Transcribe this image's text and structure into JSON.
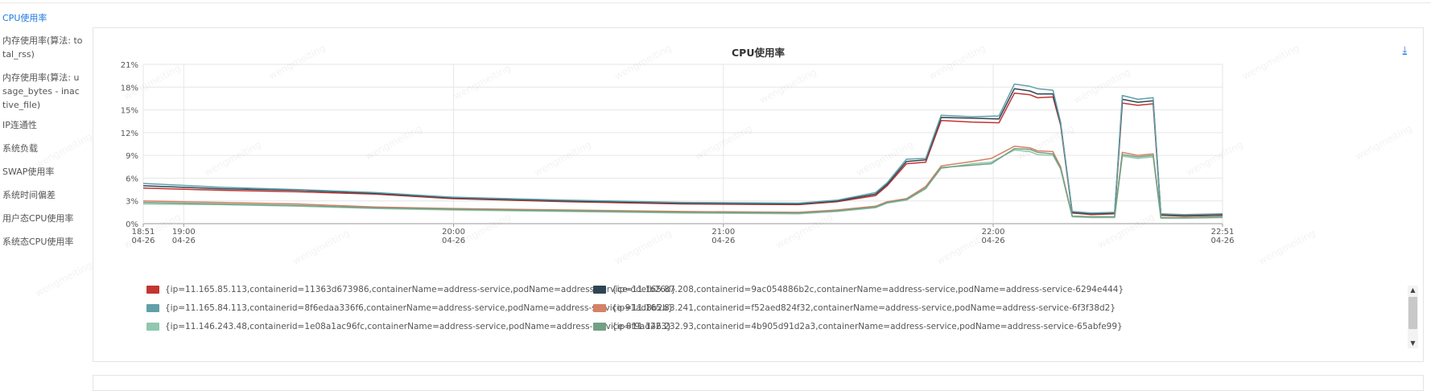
{
  "sidebar": {
    "items": [
      {
        "label": "CPU使用率",
        "active": true
      },
      {
        "label": "内存使用率(算法: total_rss)",
        "active": false
      },
      {
        "label": "内存使用率(算法: usage_bytes - inactive_file)",
        "active": false
      },
      {
        "label": "IP连通性",
        "active": false
      },
      {
        "label": "系统负载",
        "active": false
      },
      {
        "label": "SWAP使用率",
        "active": false
      },
      {
        "label": "系统时间偏差",
        "active": false
      },
      {
        "label": "用户态CPU使用率",
        "active": false
      },
      {
        "label": "系统态CPU使用率",
        "active": false
      }
    ]
  },
  "panel": {
    "download_icon": "download-icon",
    "download_glyph": "⤓"
  },
  "watermark_text": "wengmeiting",
  "chart_data": {
    "type": "line",
    "title": "CPU使用率",
    "xlabel": "",
    "ylabel": "",
    "ylim": [
      0,
      21
    ],
    "y_ticks": [
      "0%",
      "3%",
      "6%",
      "9%",
      "12%",
      "15%",
      "18%",
      "21%"
    ],
    "y_tick_values": [
      0,
      3,
      6,
      9,
      12,
      15,
      18,
      21
    ],
    "xlim": [
      "18:51 04-26",
      "22:51 04-26"
    ],
    "x_ticks": [
      {
        "time": "18:51",
        "date": "04-26",
        "minute": 0
      },
      {
        "time": "19:00",
        "date": "04-26",
        "minute": 9
      },
      {
        "time": "20:00",
        "date": "04-26",
        "minute": 69
      },
      {
        "time": "21:00",
        "date": "04-26",
        "minute": 129
      },
      {
        "time": "22:00",
        "date": "04-26",
        "minute": 189
      },
      {
        "time": "22:51",
        "date": "04-26",
        "minute": 240
      }
    ],
    "grid": true,
    "legend_position": "bottom",
    "series": [
      {
        "name": "{ip=11.165.85.113,containerid=11363d673986,containerName=address-service,podName=address-service-ddefb26d}",
        "color": "#c23531",
        "points": [
          [
            0,
            4.7
          ],
          [
            20,
            4.4
          ],
          [
            40,
            4.2
          ],
          [
            60,
            3.9
          ],
          [
            80,
            3.3
          ],
          [
            110,
            2.9
          ],
          [
            140,
            2.6
          ],
          [
            170,
            2.5
          ],
          [
            180,
            2.9
          ],
          [
            190,
            3.7
          ],
          [
            193,
            5.0
          ],
          [
            198,
            7.9
          ],
          [
            203,
            8.1
          ],
          [
            207,
            13.6
          ],
          [
            215,
            13.4
          ],
          [
            222,
            13.3
          ],
          [
            226,
            17.2
          ],
          [
            230,
            17.0
          ],
          [
            232,
            16.6
          ],
          [
            236,
            16.7
          ],
          [
            238,
            13.0
          ],
          [
            241,
            1.4
          ],
          [
            246,
            1.2
          ],
          [
            252,
            1.3
          ],
          [
            254,
            15.9
          ],
          [
            258,
            15.6
          ],
          [
            262,
            15.8
          ],
          [
            264,
            1.1
          ],
          [
            270,
            1.0
          ],
          [
            280,
            1.1
          ]
        ]
      },
      {
        "name": "{ip=11.165.87.208,containerid=9ac054886b2c,containerName=address-service,podName=address-service-6294e444}",
        "color": "#2f4554",
        "points": [
          [
            0,
            5.0
          ],
          [
            20,
            4.6
          ],
          [
            40,
            4.4
          ],
          [
            60,
            4.0
          ],
          [
            80,
            3.4
          ],
          [
            110,
            3.0
          ],
          [
            140,
            2.7
          ],
          [
            170,
            2.6
          ],
          [
            180,
            3.0
          ],
          [
            190,
            3.9
          ],
          [
            193,
            5.2
          ],
          [
            198,
            8.2
          ],
          [
            203,
            8.4
          ],
          [
            207,
            14.0
          ],
          [
            215,
            13.9
          ],
          [
            222,
            13.8
          ],
          [
            226,
            17.8
          ],
          [
            230,
            17.5
          ],
          [
            232,
            17.1
          ],
          [
            236,
            17.1
          ],
          [
            238,
            13.2
          ],
          [
            241,
            1.5
          ],
          [
            246,
            1.3
          ],
          [
            252,
            1.4
          ],
          [
            254,
            16.4
          ],
          [
            258,
            16.0
          ],
          [
            262,
            16.2
          ],
          [
            264,
            1.2
          ],
          [
            270,
            1.1
          ],
          [
            280,
            1.2
          ]
        ]
      },
      {
        "name": "{ip=11.165.84.113,containerid=8f6edaa336f6,containerName=address-service,podName=address-service-91ad8b2b}",
        "color": "#61a0a8",
        "points": [
          [
            0,
            5.3
          ],
          [
            20,
            4.8
          ],
          [
            40,
            4.5
          ],
          [
            60,
            4.1
          ],
          [
            80,
            3.5
          ],
          [
            110,
            3.1
          ],
          [
            140,
            2.8
          ],
          [
            170,
            2.7
          ],
          [
            180,
            3.1
          ],
          [
            190,
            4.1
          ],
          [
            193,
            5.4
          ],
          [
            198,
            8.5
          ],
          [
            203,
            8.6
          ],
          [
            207,
            14.3
          ],
          [
            215,
            14.1
          ],
          [
            222,
            14.2
          ],
          [
            226,
            18.4
          ],
          [
            230,
            18.1
          ],
          [
            232,
            17.8
          ],
          [
            236,
            17.6
          ],
          [
            238,
            13.4
          ],
          [
            241,
            1.6
          ],
          [
            246,
            1.4
          ],
          [
            252,
            1.5
          ],
          [
            254,
            16.9
          ],
          [
            258,
            16.4
          ],
          [
            262,
            16.6
          ],
          [
            264,
            1.3
          ],
          [
            270,
            1.2
          ],
          [
            280,
            1.3
          ]
        ]
      },
      {
        "name": "{ip=11.165.83.241,containerid=f52aed824f32,containerName=address-service,podName=address-service-6f3f38d2}",
        "color": "#d48265",
        "points": [
          [
            0,
            3.0
          ],
          [
            20,
            2.8
          ],
          [
            40,
            2.6
          ],
          [
            60,
            2.2
          ],
          [
            80,
            2.0
          ],
          [
            110,
            1.8
          ],
          [
            140,
            1.6
          ],
          [
            170,
            1.5
          ],
          [
            180,
            1.8
          ],
          [
            190,
            2.3
          ],
          [
            193,
            2.9
          ],
          [
            198,
            3.3
          ],
          [
            203,
            4.9
          ],
          [
            207,
            7.6
          ],
          [
            215,
            8.2
          ],
          [
            220,
            8.6
          ],
          [
            226,
            10.2
          ],
          [
            230,
            10.0
          ],
          [
            232,
            9.6
          ],
          [
            236,
            9.5
          ],
          [
            238,
            7.5
          ],
          [
            241,
            1.0
          ],
          [
            246,
            0.9
          ],
          [
            252,
            0.9
          ],
          [
            254,
            9.4
          ],
          [
            258,
            9.0
          ],
          [
            262,
            9.2
          ],
          [
            264,
            0.8
          ],
          [
            270,
            0.8
          ],
          [
            280,
            0.9
          ]
        ]
      },
      {
        "name": "{ip=11.146.243.48,containerid=1e08a1ac96fc,containerName=address-service,podName=address-service-8f9ad223}",
        "color": "#91c7ae",
        "points": [
          [
            0,
            2.6
          ],
          [
            20,
            2.5
          ],
          [
            40,
            2.3
          ],
          [
            60,
            2.0
          ],
          [
            80,
            1.8
          ],
          [
            110,
            1.6
          ],
          [
            140,
            1.4
          ],
          [
            170,
            1.3
          ],
          [
            180,
            1.6
          ],
          [
            190,
            2.1
          ],
          [
            193,
            2.7
          ],
          [
            198,
            3.1
          ],
          [
            203,
            4.6
          ],
          [
            207,
            7.3
          ],
          [
            215,
            7.9
          ],
          [
            220,
            8.1
          ],
          [
            226,
            9.7
          ],
          [
            230,
            9.5
          ],
          [
            232,
            9.1
          ],
          [
            236,
            9.0
          ],
          [
            238,
            7.2
          ],
          [
            241,
            0.9
          ],
          [
            246,
            0.8
          ],
          [
            252,
            0.8
          ],
          [
            254,
            8.9
          ],
          [
            258,
            8.6
          ],
          [
            262,
            8.8
          ],
          [
            264,
            0.7
          ],
          [
            270,
            0.7
          ],
          [
            280,
            0.8
          ]
        ]
      },
      {
        "name": "{ip=11.146.232.93,containerid=4b905d91d2a3,containerName=address-service,podName=address-service-65abfe99}",
        "color": "#749f83",
        "points": [
          [
            0,
            2.8
          ],
          [
            20,
            2.6
          ],
          [
            40,
            2.4
          ],
          [
            60,
            2.1
          ],
          [
            80,
            1.9
          ],
          [
            110,
            1.7
          ],
          [
            140,
            1.5
          ],
          [
            170,
            1.4
          ],
          [
            180,
            1.7
          ],
          [
            190,
            2.2
          ],
          [
            193,
            2.8
          ],
          [
            198,
            3.2
          ],
          [
            203,
            4.7
          ],
          [
            207,
            7.4
          ],
          [
            215,
            7.7
          ],
          [
            220,
            7.9
          ],
          [
            226,
            9.9
          ],
          [
            230,
            9.8
          ],
          [
            232,
            9.4
          ],
          [
            236,
            9.2
          ],
          [
            238,
            7.3
          ],
          [
            241,
            1.0
          ],
          [
            246,
            0.9
          ],
          [
            252,
            0.9
          ],
          [
            254,
            9.1
          ],
          [
            258,
            8.8
          ],
          [
            262,
            9.0
          ],
          [
            264,
            0.8
          ],
          [
            270,
            0.8
          ],
          [
            280,
            0.9
          ]
        ]
      }
    ]
  },
  "legend": {
    "items": [
      {
        "text": "{ip=11.165.85.113,containerid=11363d673986,containerName=address-service,podName=address-service-ddefb26d}",
        "color": "#c23531"
      },
      {
        "text": "{ip=11.165.87.208,containerid=9ac054886b2c,containerName=address-service,podName=address-service-6294e444}",
        "color": "#2f4554"
      },
      {
        "text": "{ip=11.165.84.113,containerid=8f6edaa336f6,containerName=address-service,podName=address-service-91ad8b2b}",
        "color": "#61a0a8"
      },
      {
        "text": "{ip=11.165.83.241,containerid=f52aed824f32,containerName=address-service,podName=address-service-6f3f38d2}",
        "color": "#d48265"
      },
      {
        "text": "{ip=11.146.243.48,containerid=1e08a1ac96fc,containerName=address-service,podName=address-service-8f9ad223}",
        "color": "#91c7ae"
      },
      {
        "text": "{ip=11.146.232.93,containerid=4b905d91d2a3,containerName=address-service,podName=address-service-65abfe99}",
        "color": "#749f83"
      }
    ]
  }
}
